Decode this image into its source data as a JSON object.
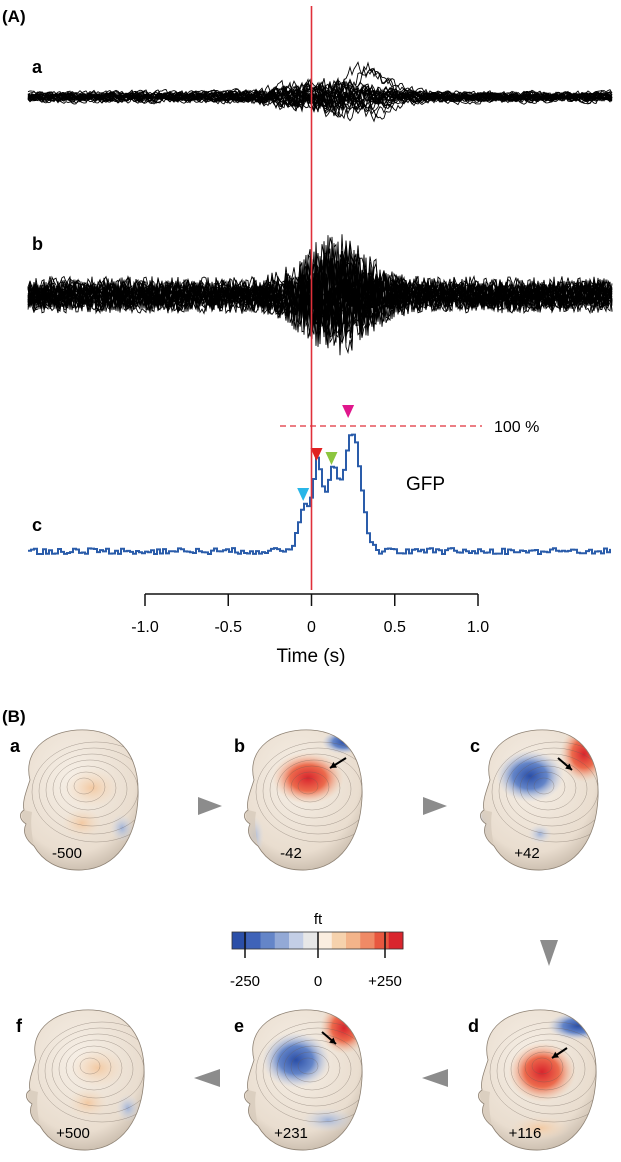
{
  "panel_a": {
    "label": "(A)",
    "traces": [
      {
        "label": "a",
        "color": "#000000"
      },
      {
        "label": "b",
        "color": "#000000"
      },
      {
        "label": "c",
        "color": "#2a5caa"
      }
    ],
    "gfp_label": "GFP",
    "peak_label": "100 %",
    "onset_line_color": "#e0303a",
    "markers": [
      {
        "time": -0.05,
        "color": "#29b6e8"
      },
      {
        "time": 0.03,
        "color": "#e02020"
      },
      {
        "time": 0.12,
        "color": "#8cc63f"
      },
      {
        "time": 0.22,
        "color": "#e0168c"
      }
    ],
    "axis": {
      "title": "Time (s)",
      "ticks": [
        "-1.0",
        "-0.5",
        "0",
        "0.5",
        "1.0"
      ],
      "tick_values": [
        -1.0,
        -0.5,
        0,
        0.5,
        1.0
      ]
    }
  },
  "panel_b": {
    "label": "(B)",
    "heads": [
      {
        "label": "a",
        "time": "-500",
        "pattern": "flat"
      },
      {
        "label": "b",
        "time": "-42",
        "pattern": "early"
      },
      {
        "label": "c",
        "time": "+42",
        "pattern": "mid"
      },
      {
        "label": "d",
        "time": "+116",
        "pattern": "peak"
      },
      {
        "label": "e",
        "time": "+231",
        "pattern": "late"
      },
      {
        "label": "f",
        "time": "+500",
        "pattern": "flat"
      }
    ],
    "colorbar": {
      "unit": "ft",
      "ticks": [
        "-250",
        "0",
        "+250"
      ],
      "colors": [
        "#2b4fa8",
        "#3f63b8",
        "#6485c8",
        "#93a9d6",
        "#c3cee6",
        "#e7e7e7",
        "#fbeee0",
        "#f6d2ad",
        "#f3b48a",
        "#ef8a66",
        "#e8573f",
        "#d9252d"
      ]
    }
  }
}
